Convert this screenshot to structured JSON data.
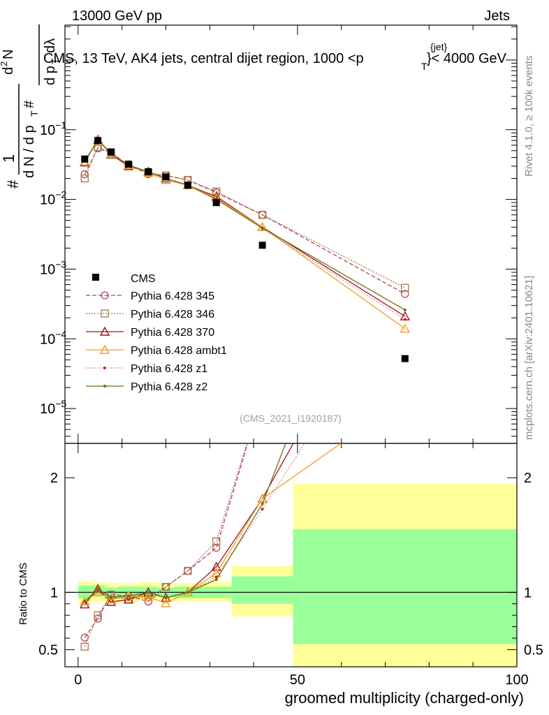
{
  "header": {
    "energy": "13000 GeV pp",
    "category": "Jets"
  },
  "side_labels": {
    "rivet": "Rivet 4.1.0, ≥ 100k events",
    "mcplots": "mcplots.cern.ch [arXiv:2401.10621]"
  },
  "chart_data": {
    "type": "line",
    "title_main": "CMS, 13 TeV, AK4 jets, central dijet region, 1000 <p",
    "title_sub": "T",
    "title_sup": "{jet}",
    "title_tail": "}< 4000 GeV",
    "watermark": "(CMS_2021_I1920187)",
    "xlabel": "groomed multiplicity (charged-only)",
    "ylabel_ratio": "Ratio to CMS",
    "xlim": [
      -3,
      100
    ],
    "ylim_main_log10": [
      -5.5,
      0.5
    ],
    "ylim_ratio": [
      0.35,
      2.3
    ],
    "x_ticks": [
      "0",
      "50",
      "100"
    ],
    "y_ticks_main": [
      {
        "base": "10",
        "exp": "−1",
        "value": 0.1
      },
      {
        "base": "10",
        "exp": "−2",
        "value": 0.01
      },
      {
        "base": "10",
        "exp": "−3",
        "value": 0.001
      },
      {
        "base": "10",
        "exp": "−4",
        "value": 0.0001
      },
      {
        "base": "10",
        "exp": "−5",
        "value": 1e-05
      }
    ],
    "y_ticks_ratio": [
      "0.5",
      "1",
      "2"
    ],
    "bins": [
      [
        0,
        3
      ],
      [
        3,
        6
      ],
      [
        6,
        9
      ],
      [
        9,
        14
      ],
      [
        14,
        18
      ],
      [
        18,
        22
      ],
      [
        22,
        28
      ],
      [
        28,
        35
      ],
      [
        35,
        49
      ],
      [
        49,
        100
      ]
    ],
    "x": [
      1.5,
      4.5,
      7.5,
      11.5,
      16,
      20,
      25,
      31.5,
      42,
      74.5
    ],
    "cms": [
      0.038,
      0.07,
      0.048,
      0.032,
      0.025,
      0.021,
      0.016,
      0.009,
      0.0022,
      5.2e-05
    ],
    "band_inner": [
      [
        0.95,
        1.06
      ],
      [
        0.97,
        1.06
      ],
      [
        0.94,
        1.04
      ],
      [
        0.95,
        1.05
      ],
      [
        0.96,
        1.05
      ],
      [
        0.96,
        1.04
      ],
      [
        0.95,
        1.05
      ],
      [
        0.95,
        1.05
      ],
      [
        0.9,
        1.14
      ],
      [
        0.55,
        1.55
      ]
    ],
    "band_outer": [
      [
        0.91,
        1.1
      ],
      [
        0.92,
        1.09
      ],
      [
        0.9,
        1.08
      ],
      [
        0.91,
        1.08
      ],
      [
        0.93,
        1.09
      ],
      [
        0.92,
        1.08
      ],
      [
        0.92,
        1.08
      ],
      [
        0.92,
        1.09
      ],
      [
        0.79,
        1.23
      ],
      [
        0.35,
        1.95
      ]
    ],
    "series": [
      {
        "name": "Pythia 6.428 345",
        "color": "#b8405a",
        "dash": "6,3",
        "marker": "circle",
        "values": [
          0.023,
          0.054,
          0.047,
          0.031,
          0.023,
          0.022,
          0.019,
          0.0125,
          0.006,
          0.00044
        ]
      },
      {
        "name": "Pythia 6.428 346",
        "color": "#a07848",
        "dash": "2,2",
        "marker": "square",
        "values": [
          0.02,
          0.056,
          0.047,
          0.03,
          0.024,
          0.022,
          0.019,
          0.013,
          0.006,
          0.00054
        ]
      },
      {
        "name": "Pythia 6.428 370",
        "color": "#9b1020",
        "dash": "",
        "marker": "triangle",
        "values": [
          0.034,
          0.072,
          0.044,
          0.03,
          0.025,
          0.02,
          0.016,
          0.011,
          0.004,
          0.00021
        ]
      },
      {
        "name": "Pythia 6.428 ambt1",
        "color": "#f0a020",
        "dash": "",
        "marker": "triangle",
        "values": [
          0.035,
          0.07,
          0.045,
          0.031,
          0.024,
          0.019,
          0.016,
          0.0105,
          0.004,
          0.00014
        ]
      },
      {
        "name": "Pythia 6.428 z1",
        "color": "#d02020",
        "dash": "1,3",
        "marker": "dot",
        "values": [
          0.035,
          0.071,
          0.046,
          0.03,
          0.025,
          0.02,
          0.016,
          0.0102,
          0.0038,
          0.00019
        ]
      },
      {
        "name": "Pythia 6.428 z2",
        "color": "#6b7010",
        "dash": "",
        "marker": "dot",
        "values": [
          0.035,
          0.072,
          0.046,
          0.031,
          0.025,
          0.02,
          0.016,
          0.01,
          0.0039,
          0.00026
        ]
      }
    ],
    "legend_data_label": "CMS"
  }
}
